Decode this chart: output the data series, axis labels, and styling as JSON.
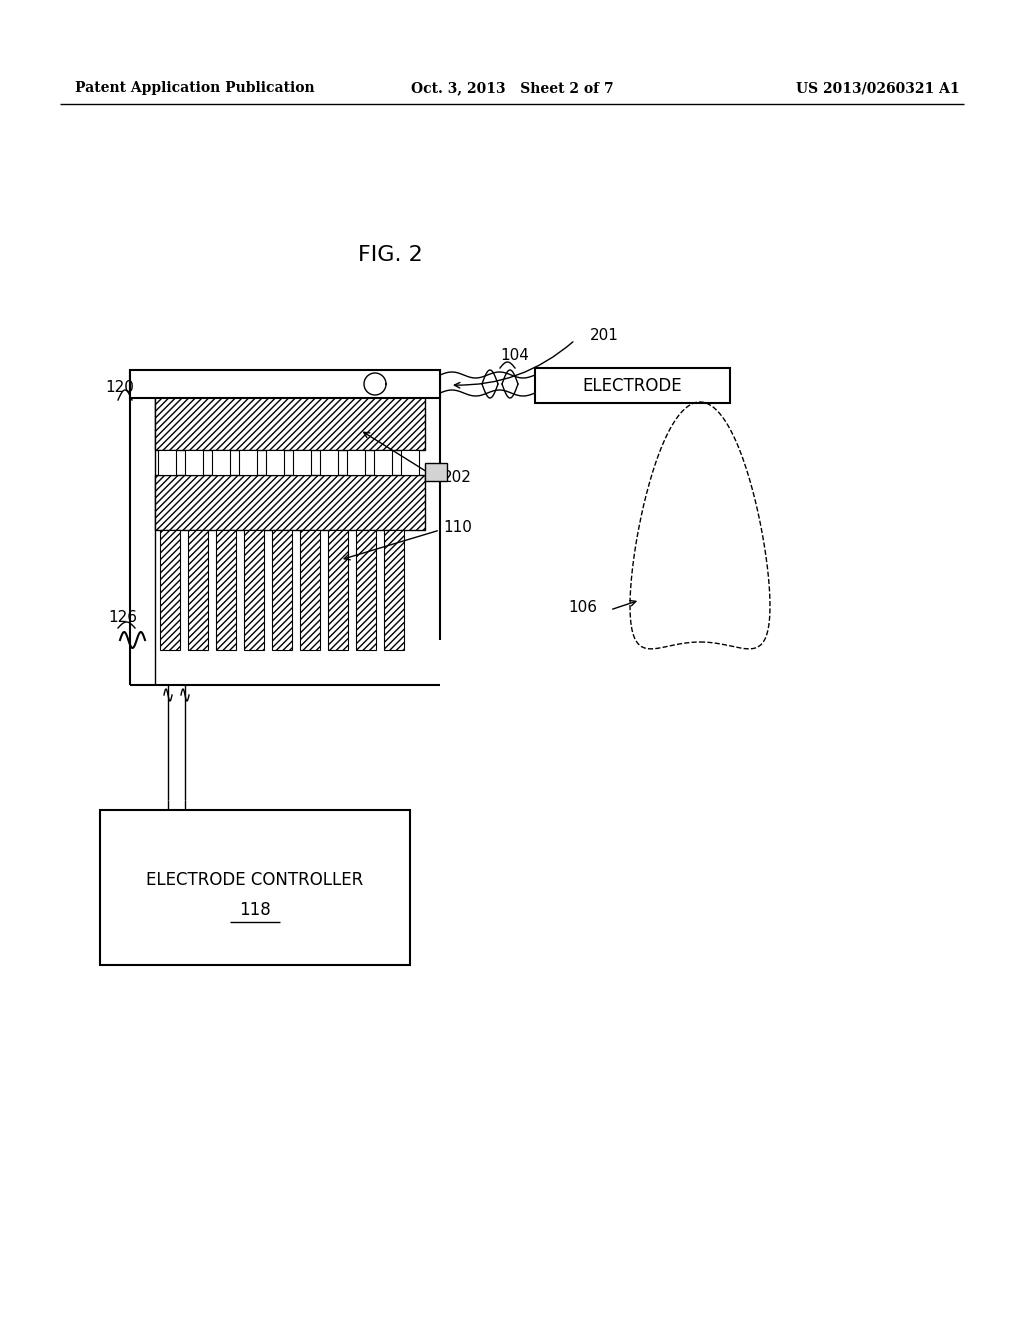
{
  "background_color": "#ffffff",
  "header_left": "Patent Application Publication",
  "header_mid": "Oct. 3, 2013   Sheet 2 of 7",
  "header_right": "US 2013/0260321 A1",
  "fig_label": "FIG. 2",
  "lw": 1.5,
  "lw_thin": 1.0
}
